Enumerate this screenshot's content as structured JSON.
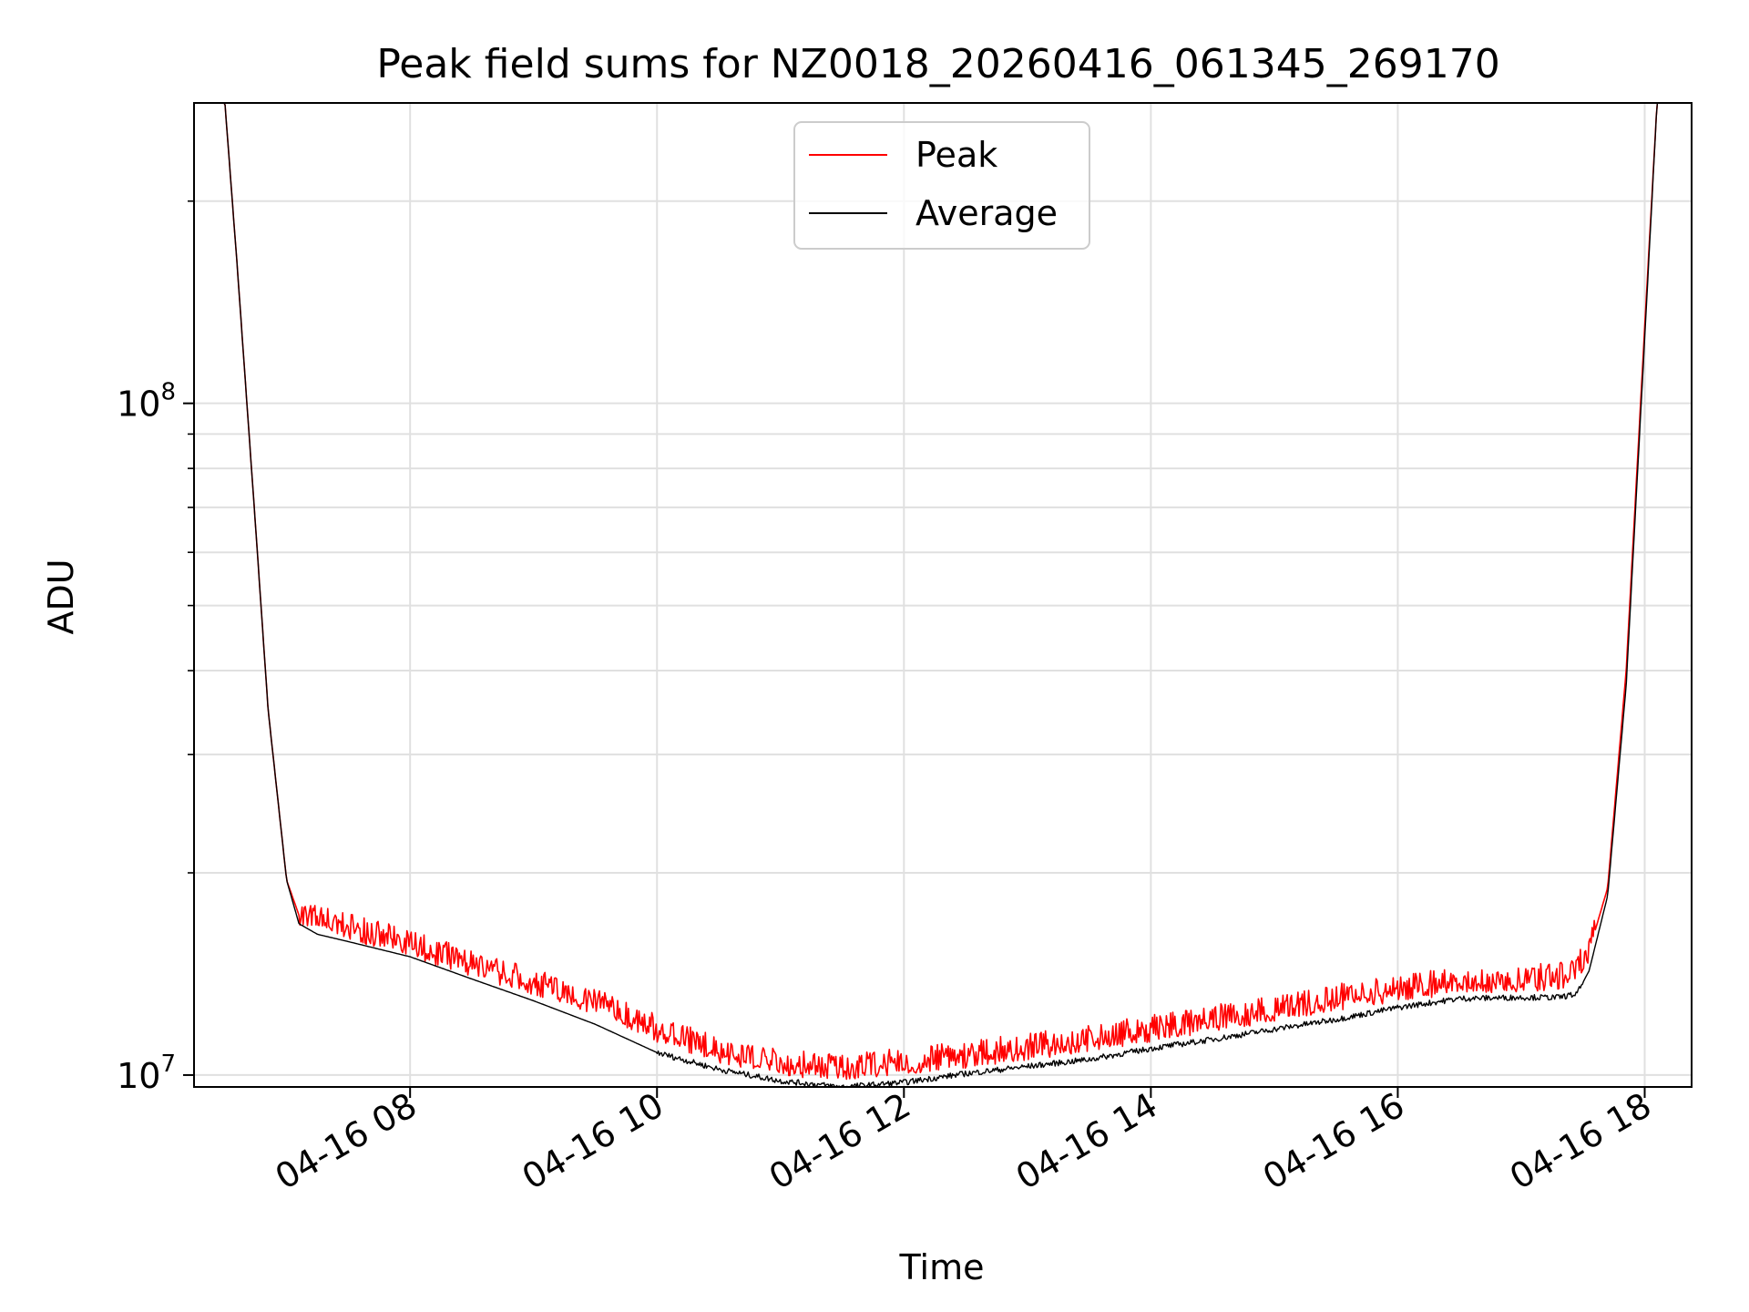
{
  "chart_data": {
    "type": "line",
    "title": "Peak field sums for NZ0018_20260416_061345_269170",
    "xlabel": "Time",
    "ylabel": "ADU",
    "y_scale": "log",
    "ylim": [
      9600000,
      280000000
    ],
    "xlim_hours": [
      6.25,
      18.38
    ],
    "grid": true,
    "legend_position": "top-center",
    "x_ticks": [
      {
        "value": 8,
        "label": "04-16 08"
      },
      {
        "value": 10,
        "label": "04-16 10"
      },
      {
        "value": 12,
        "label": "04-16 12"
      },
      {
        "value": 14,
        "label": "04-16 14"
      },
      {
        "value": 16,
        "label": "04-16 16"
      },
      {
        "value": 18,
        "label": "04-16 18"
      }
    ],
    "y_ticks": [
      {
        "value": 10000000,
        "base": "10",
        "exp": "7"
      },
      {
        "value": 100000000,
        "base": "10",
        "exp": "8"
      }
    ],
    "y_minor_ticks": [
      20000000,
      30000000,
      40000000,
      50000000,
      60000000,
      70000000,
      80000000,
      90000000,
      200000000
    ],
    "series": [
      {
        "name": "Peak",
        "color": "#ff0000",
        "noisy": true,
        "x": [
          6.25,
          6.5,
          6.6,
          6.75,
          6.85,
          7.0,
          7.1,
          7.25,
          7.5,
          8.0,
          8.5,
          9.0,
          9.5,
          10.0,
          10.5,
          11.0,
          11.5,
          12.0,
          12.5,
          13.0,
          13.5,
          14.0,
          14.5,
          15.0,
          15.5,
          16.0,
          16.5,
          17.0,
          17.3,
          17.45,
          17.55,
          17.7,
          17.85,
          18.0,
          18.1,
          18.38
        ],
        "values": [
          280000000,
          280000000,
          160000000,
          65000000,
          35000000,
          19500000,
          17300000,
          16900000,
          16500000,
          15500000,
          14500000,
          13600000,
          12700000,
          11600000,
          10800000,
          10300000,
          10200000,
          10350000,
          10600000,
          10900000,
          11200000,
          11600000,
          12000000,
          12400000,
          12900000,
          13300000,
          13700000,
          13800000,
          13850000,
          14300000,
          15300000,
          19000000,
          40000000,
          130000000,
          280000000,
          280000000
        ],
        "spike_amplitude": 0.06
      },
      {
        "name": "Average",
        "color": "#000000",
        "noisy": false,
        "x": [
          6.25,
          6.5,
          6.6,
          6.75,
          6.85,
          7.0,
          7.1,
          7.25,
          7.5,
          8.0,
          8.5,
          9.0,
          9.5,
          10.0,
          10.5,
          11.0,
          11.5,
          12.0,
          12.5,
          13.0,
          13.5,
          14.0,
          14.5,
          15.0,
          15.5,
          16.0,
          16.5,
          17.0,
          17.3,
          17.45,
          17.55,
          17.7,
          17.85,
          18.0,
          18.1,
          18.38
        ],
        "values": [
          280000000,
          280000000,
          160000000,
          65000000,
          35000000,
          19500000,
          16800000,
          16200000,
          15800000,
          15000000,
          13900000,
          12900000,
          11900000,
          10800000,
          10200000,
          9800000,
          9600000,
          9750000,
          10050000,
          10300000,
          10550000,
          10950000,
          11300000,
          11700000,
          12100000,
          12600000,
          13000000,
          13050000,
          13050000,
          13200000,
          14300000,
          18500000,
          38000000,
          125000000,
          280000000,
          280000000
        ]
      }
    ]
  }
}
